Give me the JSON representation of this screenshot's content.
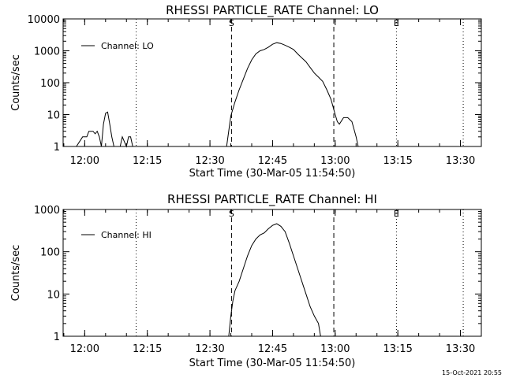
{
  "chart_data": [
    {
      "type": "line",
      "title": "RHESSI PARTICLE_RATE Channel: LO",
      "xlabel": "Start Time (30-Mar-05 11:54:50)",
      "ylabel": "Counts/sec",
      "y_scale": "log",
      "ylim": [
        1,
        10000
      ],
      "xlim": [
        "11:54:50",
        "13:35:00"
      ],
      "x_tick_labels": [
        "12:00",
        "12:15",
        "12:30",
        "12:45",
        "13:00",
        "13:15",
        "13:30"
      ],
      "y_tick_labels": [
        "1",
        "10",
        "100",
        "1000",
        "10000"
      ],
      "series": [
        {
          "name": "Channel: LO",
          "x": [
            "11:58:00",
            "11:59:30",
            "12:00:30",
            "12:01:00",
            "12:02:00",
            "12:02:30",
            "12:03:00",
            "12:03:30",
            "12:04:00",
            "12:04:30",
            "12:05:00",
            "12:05:30",
            "12:06:00",
            "12:06:30",
            "12:07:00",
            "12:08:30",
            "12:09:00",
            "12:10:00",
            "12:10:30",
            "12:11:00",
            "12:11:30",
            "12:34:00",
            "12:35:00",
            "12:36:00",
            "12:37:00",
            "12:38:00",
            "12:39:00",
            "12:40:00",
            "12:41:00",
            "12:42:00",
            "12:43:00",
            "12:44:00",
            "12:45:00",
            "12:46:00",
            "12:47:00",
            "12:48:00",
            "12:49:00",
            "12:50:00",
            "12:51:00",
            "12:52:00",
            "12:53:00",
            "12:54:00",
            "12:55:00",
            "12:56:00",
            "12:57:00",
            "12:58:00",
            "12:59:00",
            "13:00:00",
            "13:00:30",
            "13:01:00",
            "13:02:00",
            "13:03:00",
            "13:04:00",
            "13:05:00",
            "13:05:30"
          ],
          "y": [
            1,
            2,
            2,
            3,
            3,
            2.5,
            3,
            2,
            1,
            5,
            11,
            12,
            5,
            2,
            1,
            1,
            2,
            1,
            2,
            2,
            1,
            1,
            9,
            25,
            60,
            130,
            280,
            520,
            800,
            1000,
            1100,
            1300,
            1600,
            1800,
            1700,
            1500,
            1300,
            1100,
            800,
            600,
            450,
            300,
            200,
            150,
            110,
            60,
            30,
            10,
            6,
            5,
            8,
            8,
            6,
            2,
            1
          ]
        }
      ],
      "verticals": [
        {
          "label": "S",
          "x": "12:35:10",
          "style": "dashed"
        },
        {
          "label": "",
          "x": "12:59:40",
          "style": "dashed"
        },
        {
          "label": "",
          "x": "12:12:20",
          "style": "dotted"
        },
        {
          "label": "E",
          "x": "13:14:40",
          "style": "dotted"
        },
        {
          "label": "",
          "x": "13:30:40",
          "style": "dotted"
        }
      ],
      "legend_position": "top-left",
      "grid": false
    },
    {
      "type": "line",
      "title": "RHESSI PARTICLE_RATE Channel: HI",
      "xlabel": "Start Time (30-Mar-05 11:54:50)",
      "ylabel": "Counts/sec",
      "y_scale": "log",
      "ylim": [
        1,
        1000
      ],
      "xlim": [
        "11:54:50",
        "13:35:00"
      ],
      "x_tick_labels": [
        "12:00",
        "12:15",
        "12:30",
        "12:45",
        "13:00",
        "13:15",
        "13:30"
      ],
      "y_tick_labels": [
        "1",
        "10",
        "100",
        "1000"
      ],
      "series": [
        {
          "name": "Channel: HI",
          "x": [
            "12:34:30",
            "12:35:00",
            "12:35:30",
            "12:36:00",
            "12:37:00",
            "12:38:00",
            "12:39:00",
            "12:40:00",
            "12:41:00",
            "12:42:00",
            "12:43:00",
            "12:44:00",
            "12:45:00",
            "12:46:00",
            "12:47:00",
            "12:48:00",
            "12:49:00",
            "12:50:00",
            "12:51:00",
            "12:52:00",
            "12:53:00",
            "12:54:00",
            "12:55:00",
            "12:56:00",
            "12:56:30",
            "12:57:30"
          ],
          "y": [
            1,
            3,
            7,
            12,
            20,
            40,
            80,
            140,
            200,
            250,
            280,
            350,
            420,
            460,
            400,
            300,
            160,
            80,
            40,
            20,
            10,
            5,
            3,
            2,
            1,
            1
          ]
        }
      ],
      "verticals": [
        {
          "label": "S",
          "x": "12:35:10",
          "style": "dashed"
        },
        {
          "label": "",
          "x": "12:59:40",
          "style": "dashed"
        },
        {
          "label": "",
          "x": "12:12:20",
          "style": "dotted"
        },
        {
          "label": "E",
          "x": "13:14:40",
          "style": "dotted"
        },
        {
          "label": "",
          "x": "13:30:40",
          "style": "dotted"
        }
      ],
      "legend_position": "top-left",
      "grid": false
    }
  ],
  "footer": {
    "timestamp": "15-Oct-2021 20:55"
  }
}
